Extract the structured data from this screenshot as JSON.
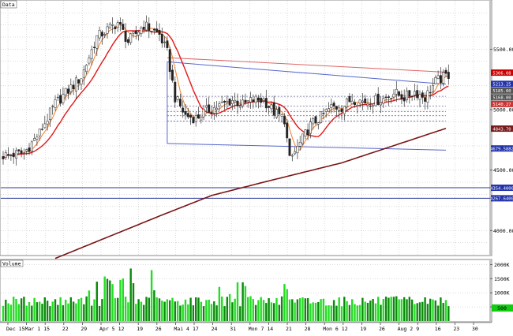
{
  "chart_data": [
    {
      "type": "candlestick",
      "panel": "price",
      "title": "Data",
      "ylim": [
        3800,
        5900
      ],
      "y_ticks": [
        {
          "value": 5500,
          "label": "5500.00"
        },
        {
          "value": 5000,
          "label": "5000.00"
        },
        {
          "value": 4500,
          "label": "4500.00"
        },
        {
          "value": 4000,
          "label": "4000.00"
        }
      ],
      "x_labels": [
        "Dec 15",
        "Mar 1",
        "15",
        "22",
        "29",
        "Apr 5",
        "12",
        "19",
        "26",
        "Mai 4",
        "17",
        "24",
        "31",
        "Mon 7",
        "14",
        "21",
        "28",
        "Mon 6",
        "12",
        "19",
        "26",
        "Aug 2",
        "9",
        "16",
        "23",
        "30"
      ],
      "price_tags": [
        {
          "value": 5306,
          "label": "5306.08",
          "color": "#cc0000"
        },
        {
          "value": 5213,
          "label": "5213.25",
          "color": "#2233aa"
        },
        {
          "value": 5185,
          "label": "5185.00",
          "color": "#555555"
        },
        {
          "value": 5168,
          "label": "5168.00",
          "color": "#555555"
        },
        {
          "value": 5140,
          "label": "5140.27",
          "color": "#cc3333"
        },
        {
          "value": 4843,
          "label": "4843.70",
          "color": "#7a1a1a"
        },
        {
          "value": 4679,
          "label": "4679.5882",
          "color": "#2233aa"
        },
        {
          "value": 4354,
          "label": "4354.4000",
          "color": "#2233aa"
        },
        {
          "value": 4267,
          "label": "4267.6400",
          "color": "#2233aa"
        }
      ],
      "horizontal_levels": [
        {
          "value": 4354,
          "color": "#2a3a9a"
        },
        {
          "value": 4267,
          "color": "#2a3a9a"
        }
      ],
      "channel": {
        "start_index": 63,
        "end_index": 170,
        "upper": [
          5395,
          5210
        ],
        "lower": [
          4720,
          4665
        ],
        "color": "#5566cc"
      },
      "trend_line": {
        "start_index": 63,
        "end_index": 170,
        "values": [
          5430,
          5310
        ],
        "color": "#dd6666"
      },
      "dotted_levels": [
        5110,
        5030,
        4985,
        4950,
        4905
      ],
      "ma_long_anchors": [
        [
          20,
          3770
        ],
        [
          60,
          4120
        ],
        [
          80,
          4290
        ],
        [
          100,
          4400
        ],
        [
          130,
          4560
        ],
        [
          170,
          4845
        ]
      ],
      "candles_count": 172,
      "candle_colors": {
        "up": "#ffffff",
        "down": "#222222",
        "wick": "#333333"
      },
      "ma_colors": {
        "fast": "#f08a3a",
        "mid": "#e01818",
        "long": "#7a1414"
      }
    },
    {
      "type": "bar",
      "panel": "volume",
      "title": "Volume",
      "y_ticks": [
        {
          "value": 2000,
          "label": "2000K"
        },
        {
          "value": 1500,
          "label": "1500K"
        },
        {
          "value": 1000,
          "label": "1000K"
        },
        {
          "value": 500,
          "label": "500K"
        }
      ],
      "ylim": [
        0,
        2150
      ],
      "last_value_label": "500",
      "colors": {
        "bright": "#22dd22",
        "dark": "#0a8a0a",
        "last_tag": "#11cc11"
      }
    }
  ]
}
